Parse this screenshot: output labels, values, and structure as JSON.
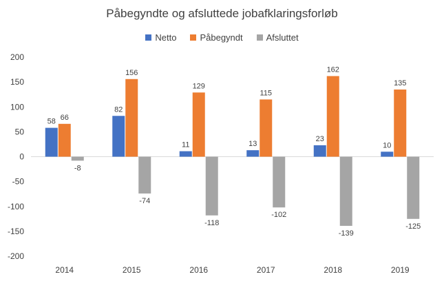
{
  "chart_data": {
    "type": "bar",
    "title": "Påbegyndte og afsluttede jobafklaringsforløb",
    "categories": [
      "2014",
      "2015",
      "2016",
      "2017",
      "2018",
      "2019"
    ],
    "series": [
      {
        "name": "Netto",
        "color": "#4472C4",
        "values": [
          58,
          82,
          11,
          13,
          23,
          10
        ]
      },
      {
        "name": "Påbegyndt",
        "color": "#ED7D31",
        "values": [
          66,
          156,
          129,
          115,
          162,
          135
        ]
      },
      {
        "name": "Afsluttet",
        "color": "#A5A5A5",
        "values": [
          -8,
          -74,
          -118,
          -102,
          -139,
          -125
        ]
      }
    ],
    "ylim": [
      -200,
      200
    ],
    "yticks": [
      "200",
      "150",
      "100",
      "50",
      "0",
      "-50",
      "-100",
      "-150",
      "-200"
    ],
    "legend_position": "top",
    "grid": false
  }
}
